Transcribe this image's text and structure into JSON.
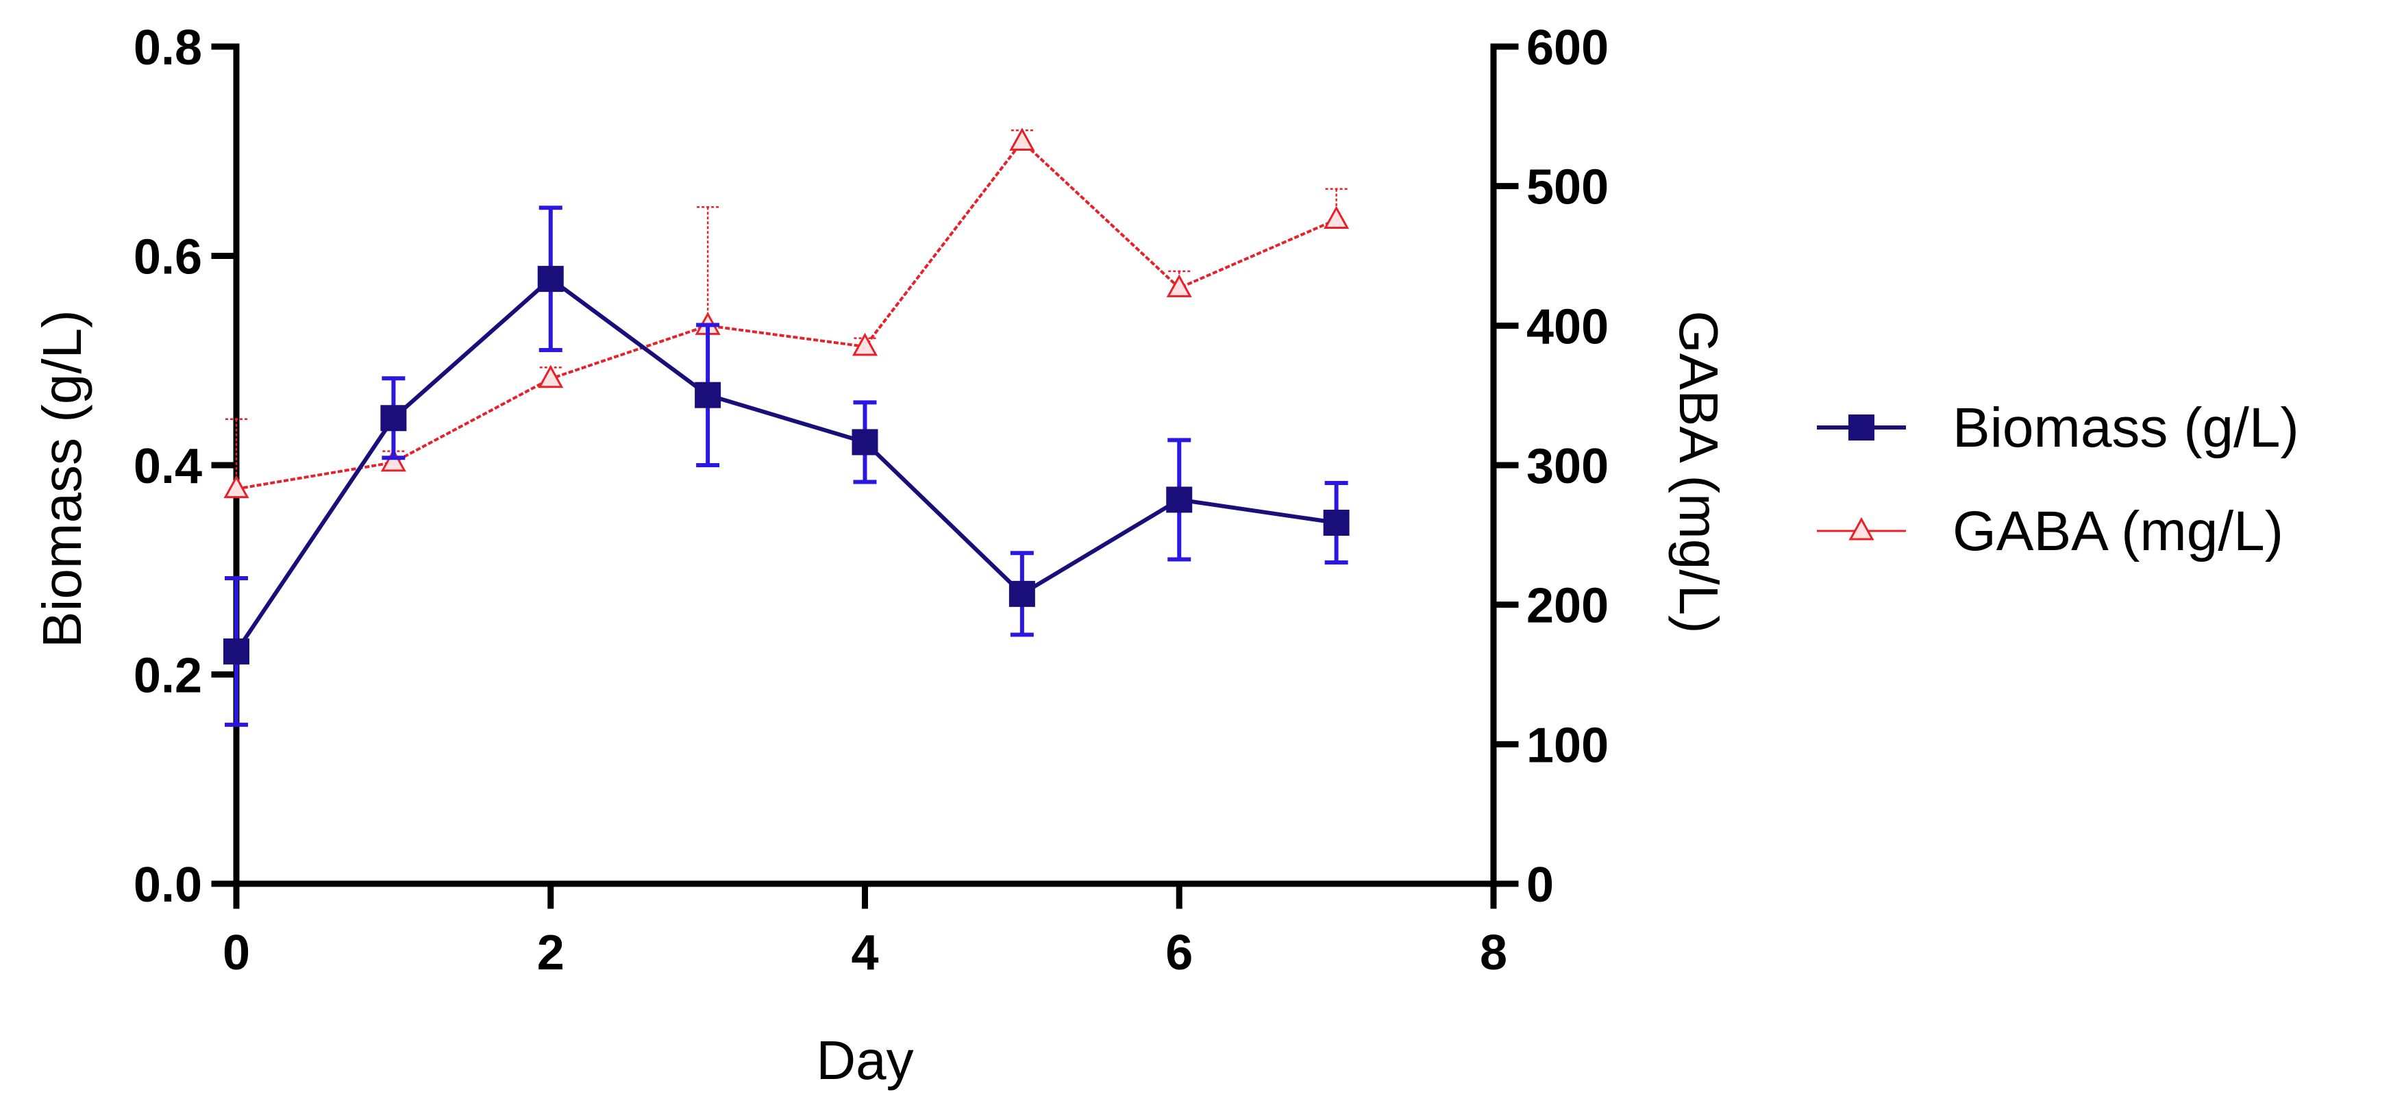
{
  "chart_data": {
    "type": "line",
    "title": "",
    "xlabel": "Day",
    "ylabel_left": "Biomass (g/L)",
    "ylabel_right": "GABA (mg/L)",
    "xlim": [
      0,
      8
    ],
    "ylim_left": [
      0,
      0.8
    ],
    "ylim_right": [
      0,
      600
    ],
    "x_ticks": [
      0,
      2,
      4,
      6,
      8
    ],
    "x_tick_labels": [
      "0",
      "2",
      "4",
      "6",
      "8"
    ],
    "y_left_ticks": [
      0,
      0.2,
      0.4,
      0.6,
      0.8
    ],
    "y_left_tick_labels": [
      "0.0",
      "0.2",
      "0.4",
      "0.6",
      "0.8"
    ],
    "y_right_ticks": [
      0,
      100,
      200,
      300,
      400,
      500,
      600
    ],
    "y_right_tick_labels": [
      "0",
      "100",
      "200",
      "300",
      "400",
      "500",
      "600"
    ],
    "grid": false,
    "legend_position": "right",
    "series": [
      {
        "name": "Biomass (g/L)",
        "axis": "left",
        "color": "#1a0f7a",
        "error_color": "#2a18e0",
        "marker": "square",
        "x": [
          0,
          1,
          2,
          3,
          4,
          5,
          6,
          7
        ],
        "values": [
          0.222,
          0.445,
          0.578,
          0.467,
          0.422,
          0.277,
          0.367,
          0.345
        ],
        "errors": [
          0.07,
          0.038,
          0.068,
          0.067,
          0.038,
          0.039,
          0.057,
          0.038
        ]
      },
      {
        "name": "GABA (mg/L)",
        "axis": "right",
        "color": "#e8202a",
        "marker": "triangle",
        "x": [
          0,
          1,
          2,
          3,
          4,
          5,
          6,
          7
        ],
        "values": [
          283,
          302,
          362,
          400,
          385,
          532,
          427,
          476
        ],
        "errors": [
          50,
          8,
          8,
          85,
          6,
          8,
          12,
          22
        ]
      }
    ]
  }
}
